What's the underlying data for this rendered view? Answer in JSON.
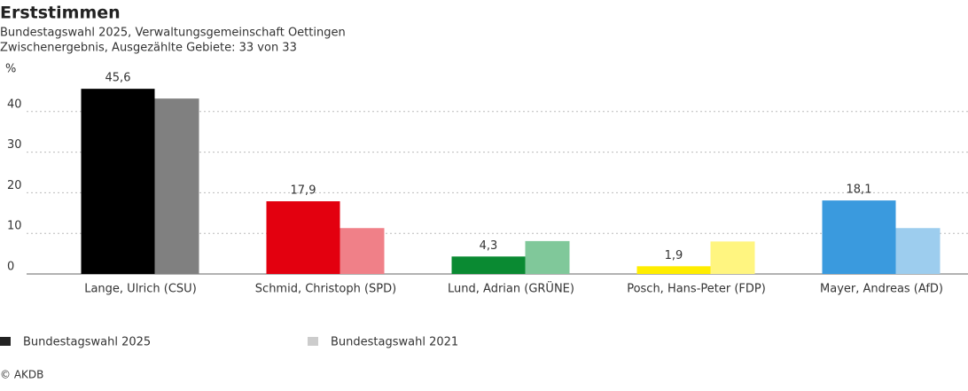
{
  "chart_data": {
    "type": "bar",
    "title": "Erststimmen",
    "subtitle": [
      "Bundestagswahl 2025, Verwaltungsgemeinschaft Oettingen",
      "Zwischenergebnis, Ausgezählte Gebiete: 33 von 33"
    ],
    "ylabel": "%",
    "categories": [
      "Lange, Ulrich (CSU)",
      "Schmid, Christoph (SPD)",
      "Lund, Adrian (GRÜNE)",
      "Posch, Hans-Peter (FDP)",
      "Mayer, Andreas (AfD)"
    ],
    "series": [
      {
        "name": "Bundestagswahl 2025",
        "color": "#222222",
        "colors": [
          "#000000",
          "#e3000f",
          "#0a8a32",
          "#ffed00",
          "#3a9ade"
        ],
        "values": [
          45.6,
          17.9,
          4.3,
          1.9,
          18.1
        ],
        "value_labels": [
          "45,6",
          "17,9",
          "4,3",
          "1,9",
          "18,1"
        ]
      },
      {
        "name": "Bundestagswahl 2021",
        "color": "#cccccc",
        "colors": [
          "#808080",
          "#f08088",
          "#80c89a",
          "#fff580",
          "#9dcdee"
        ],
        "values": [
          43.2,
          11.3,
          8.1,
          8.0,
          11.3
        ]
      }
    ],
    "ylim": [
      0,
      50
    ],
    "yticks": [
      0,
      10,
      20,
      30,
      40
    ],
    "grid": true,
    "source": "© AKDB"
  }
}
